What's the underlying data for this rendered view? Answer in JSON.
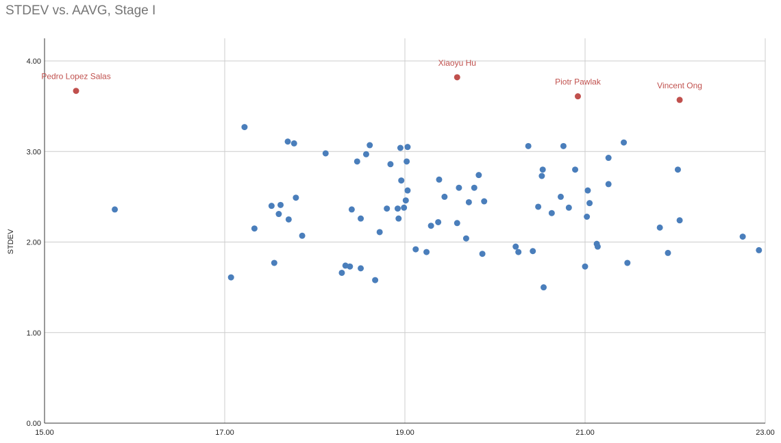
{
  "chart_data": {
    "type": "scatter",
    "title": "STDEV vs. AAVG, Stage I",
    "xlabel": "",
    "ylabel": "STDEV",
    "xlim": [
      15,
      23
    ],
    "ylim": [
      0,
      4.25
    ],
    "xticks": [
      "15.00",
      "17.00",
      "19.00",
      "21.00",
      "23.00"
    ],
    "xtick_values": [
      15,
      17,
      19,
      21,
      23
    ],
    "yticks": [
      "0.00",
      "1.00",
      "2.00",
      "3.00",
      "4.00"
    ],
    "ytick_values": [
      0,
      1,
      2,
      3,
      4
    ],
    "grid": true,
    "colors": {
      "normal": "#4a7ebb",
      "highlight": "#c0504d"
    },
    "highlighted_points": [
      {
        "label": "Pedro Lopez Salas",
        "x": 15.35,
        "y": 3.67
      },
      {
        "label": "Xiaoyu Hu",
        "x": 19.58,
        "y": 3.82
      },
      {
        "label": "Piotr Pawlak",
        "x": 20.92,
        "y": 3.61
      },
      {
        "label": "Vincent Ong",
        "x": 22.05,
        "y": 3.57
      }
    ],
    "points": [
      [
        15.78,
        2.36
      ],
      [
        17.07,
        1.61
      ],
      [
        17.22,
        3.27
      ],
      [
        17.33,
        2.15
      ],
      [
        17.52,
        2.4
      ],
      [
        17.55,
        1.77
      ],
      [
        17.6,
        2.31
      ],
      [
        17.62,
        2.41
      ],
      [
        17.7,
        3.11
      ],
      [
        17.71,
        2.25
      ],
      [
        17.77,
        3.09
      ],
      [
        17.79,
        2.49
      ],
      [
        17.86,
        2.07
      ],
      [
        18.12,
        2.98
      ],
      [
        18.3,
        1.66
      ],
      [
        18.34,
        1.74
      ],
      [
        18.39,
        1.73
      ],
      [
        18.41,
        2.36
      ],
      [
        18.47,
        2.89
      ],
      [
        18.51,
        1.71
      ],
      [
        18.51,
        2.26
      ],
      [
        18.57,
        2.97
      ],
      [
        18.61,
        3.07
      ],
      [
        18.67,
        1.58
      ],
      [
        18.72,
        2.11
      ],
      [
        18.8,
        2.37
      ],
      [
        18.84,
        2.86
      ],
      [
        18.92,
        2.37
      ],
      [
        18.93,
        2.26
      ],
      [
        18.95,
        3.04
      ],
      [
        18.96,
        2.68
      ],
      [
        18.99,
        2.38
      ],
      [
        19.01,
        2.46
      ],
      [
        19.02,
        2.89
      ],
      [
        19.03,
        2.57
      ],
      [
        19.03,
        3.05
      ],
      [
        19.12,
        1.92
      ],
      [
        19.24,
        1.89
      ],
      [
        19.29,
        2.18
      ],
      [
        19.37,
        2.22
      ],
      [
        19.38,
        2.69
      ],
      [
        19.44,
        2.5
      ],
      [
        19.58,
        2.21
      ],
      [
        19.6,
        2.6
      ],
      [
        19.68,
        2.04
      ],
      [
        19.71,
        2.44
      ],
      [
        19.77,
        2.6
      ],
      [
        19.82,
        2.74
      ],
      [
        19.86,
        1.87
      ],
      [
        19.88,
        2.45
      ],
      [
        20.23,
        1.95
      ],
      [
        20.26,
        1.89
      ],
      [
        20.37,
        3.06
      ],
      [
        20.42,
        1.9
      ],
      [
        20.48,
        2.39
      ],
      [
        20.52,
        2.73
      ],
      [
        20.53,
        2.8
      ],
      [
        20.54,
        1.5
      ],
      [
        20.63,
        2.32
      ],
      [
        20.73,
        2.5
      ],
      [
        20.76,
        3.06
      ],
      [
        20.82,
        2.38
      ],
      [
        20.89,
        2.8
      ],
      [
        21.0,
        1.73
      ],
      [
        21.02,
        2.28
      ],
      [
        21.03,
        2.57
      ],
      [
        21.05,
        2.43
      ],
      [
        21.13,
        1.98
      ],
      [
        21.14,
        1.95
      ],
      [
        21.26,
        2.93
      ],
      [
        21.26,
        2.64
      ],
      [
        21.43,
        3.1
      ],
      [
        21.47,
        1.77
      ],
      [
        21.83,
        2.16
      ],
      [
        21.92,
        1.88
      ],
      [
        22.03,
        2.8
      ],
      [
        22.05,
        2.24
      ],
      [
        22.75,
        2.06
      ],
      [
        22.93,
        1.91
      ]
    ]
  }
}
